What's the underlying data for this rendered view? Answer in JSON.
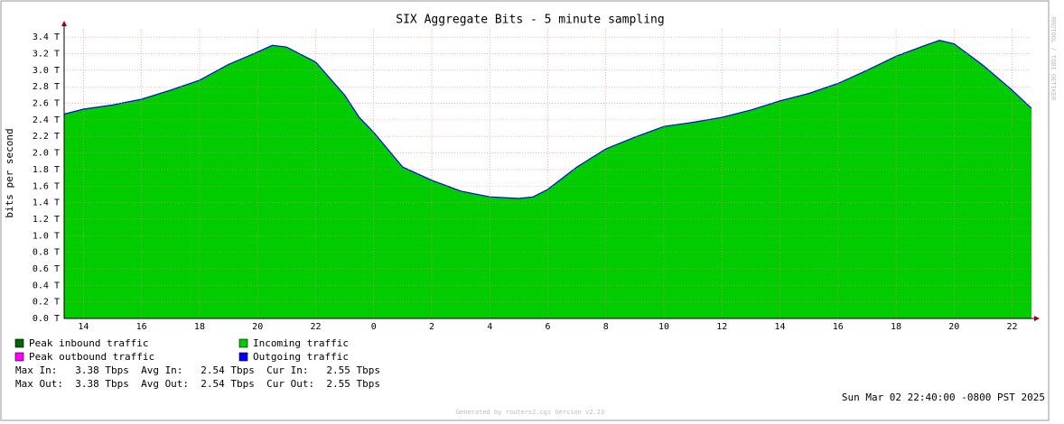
{
  "chart_data": {
    "type": "area",
    "title": "SIX Aggregate Bits - 5 minute sampling",
    "y_label": "bits per second",
    "side_label": "RRDTOOL / TOBI OETIKER",
    "x": [
      13.333,
      14,
      15,
      16,
      17,
      18,
      19,
      20,
      20.5,
      21,
      22,
      23,
      23.5,
      24,
      25,
      26,
      27,
      28,
      29,
      29.5,
      30,
      31,
      32,
      33,
      34,
      35,
      36,
      37,
      38,
      39,
      40,
      41,
      42,
      43,
      43.5,
      44,
      45,
      46,
      46.667
    ],
    "series": [
      {
        "name": "Peak inbound traffic",
        "color": "#006600"
      },
      {
        "name": "Incoming traffic",
        "color": "#00cc00",
        "values": [
          2.47,
          2.53,
          2.58,
          2.65,
          2.76,
          2.88,
          3.07,
          3.22,
          3.3,
          3.28,
          3.1,
          2.7,
          2.43,
          2.25,
          1.83,
          1.67,
          1.54,
          1.47,
          1.45,
          1.47,
          1.56,
          1.83,
          2.05,
          2.19,
          2.32,
          2.37,
          2.43,
          2.52,
          2.63,
          2.72,
          2.84,
          3.0,
          3.17,
          3.3,
          3.36,
          3.32,
          3.06,
          2.76,
          2.54
        ]
      },
      {
        "name": "Peak outbound traffic",
        "color": "#ff00ff"
      },
      {
        "name": "Outgoing traffic",
        "color": "#0000ff",
        "values": [
          2.47,
          2.53,
          2.58,
          2.65,
          2.76,
          2.88,
          3.07,
          3.22,
          3.3,
          3.28,
          3.1,
          2.7,
          2.43,
          2.25,
          1.83,
          1.67,
          1.54,
          1.47,
          1.45,
          1.47,
          1.56,
          1.83,
          2.05,
          2.19,
          2.32,
          2.37,
          2.43,
          2.52,
          2.63,
          2.72,
          2.84,
          3.0,
          3.17,
          3.3,
          3.36,
          3.32,
          3.06,
          2.76,
          2.54
        ]
      }
    ],
    "xlim": [
      13.333,
      46.667
    ],
    "xticks": [
      14,
      16,
      18,
      20,
      22,
      {
        "value": 24,
        "label": "0"
      },
      {
        "value": 26,
        "label": "2"
      },
      {
        "value": 28,
        "label": "4"
      },
      {
        "value": 30,
        "label": "6"
      },
      {
        "value": 32,
        "label": "8"
      },
      {
        "value": 34,
        "label": "10"
      },
      {
        "value": 36,
        "label": "12"
      },
      {
        "value": 38,
        "label": "14"
      },
      {
        "value": 40,
        "label": "16"
      },
      {
        "value": 42,
        "label": "18"
      },
      {
        "value": 44,
        "label": "20"
      },
      {
        "value": 46,
        "label": "22"
      }
    ],
    "ylim": [
      0,
      3.5
    ],
    "yticks": [
      {
        "value": 0,
        "label": "0.0 T"
      },
      {
        "value": 0.2,
        "label": "0.2 T"
      },
      {
        "value": 0.4,
        "label": "0.4 T"
      },
      {
        "value": 0.6,
        "label": "0.6 T"
      },
      {
        "value": 0.8,
        "label": "0.8 T"
      },
      {
        "value": 1.0,
        "label": "1.0 T"
      },
      {
        "value": 1.2,
        "label": "1.2 T"
      },
      {
        "value": 1.4,
        "label": "1.4 T"
      },
      {
        "value": 1.6,
        "label": "1.6 T"
      },
      {
        "value": 1.8,
        "label": "1.8 T"
      },
      {
        "value": 2.0,
        "label": "2.0 T"
      },
      {
        "value": 2.2,
        "label": "2.2 T"
      },
      {
        "value": 2.4,
        "label": "2.4 T"
      },
      {
        "value": 2.6,
        "label": "2.6 T"
      },
      {
        "value": 2.8,
        "label": "2.8 T"
      },
      {
        "value": 3.0,
        "label": "3.0 T"
      },
      {
        "value": 3.2,
        "label": "3.2 T"
      },
      {
        "value": 3.4,
        "label": "3.4 T"
      }
    ],
    "grid": true,
    "stats": [
      "Max In:   3.38 Tbps  Avg In:   2.54 Tbps  Cur In:   2.55 Tbps",
      "Max Out:  3.38 Tbps  Avg Out:  2.54 Tbps  Cur Out:  2.55 Tbps"
    ],
    "timestamp": "Sun Mar 02 22:40:00 -0800 PST 2025",
    "footer": "Generated by routers2.cgi Version v2.23"
  }
}
